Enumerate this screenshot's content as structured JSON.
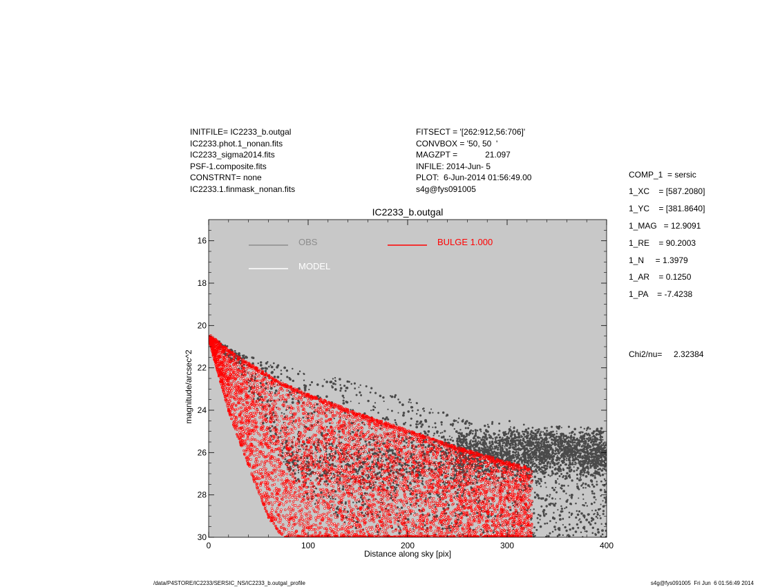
{
  "header_left": [
    "INITFILE= IC2233_b.outgal",
    "IC2233.phot.1_nonan.fits",
    "IC2233_sigma2014.fits",
    "PSF-1.composite.fits",
    "CONSTRNT= none",
    "IC2233.1.finmask_nonan.fits"
  ],
  "header_mid": [
    "FITSECT = '[262:912,56:706]'",
    "CONVBOX = '50, 50  '",
    "MAGZPT =            21.097",
    "INFILE: 2014-Jun- 5",
    "PLOT:  6-Jun-2014 01:56:49.00",
    "s4g@fys091005"
  ],
  "params": [
    "COMP_1  = sersic",
    "1_XC    = [587.2080]",
    "1_YC    = [381.8640]",
    "1_MAG   = 12.9091",
    "1_RE    = 90.2003",
    "1_N     = 1.3979",
    "1_AR    = 0.1250",
    "1_PA    = -7.4238"
  ],
  "chi2": "Chi2/nu=     2.32384",
  "footer_left": "/data/P4STORE/IC2233/SERSIC_NS/IC2233_b.outgal_profile",
  "footer_right": "s4g@fys091005  Fri Jun  6 01:56:49 2014",
  "colors": {
    "plot_bg": "#c8c8c8",
    "obs": "#4a4a4a",
    "obs_legend": "#8c8c8c",
    "model": "#ffffff",
    "bulge": "#ff0000"
  },
  "chart_data": {
    "type": "scatter",
    "title": "IC2233_b.outgal",
    "xlabel": "Distance along sky [pix]",
    "ylabel": "magnitude/arcsec^2",
    "xlim": [
      0,
      400
    ],
    "ylim": [
      30,
      15
    ],
    "y_reversed": true,
    "x_ticks": [
      0,
      100,
      200,
      300,
      400
    ],
    "y_ticks": [
      16,
      18,
      20,
      22,
      24,
      26,
      28,
      30
    ],
    "x_tick_labels": [
      "0",
      "100",
      "200",
      "300",
      "400"
    ],
    "y_tick_labels": [
      "16",
      "18",
      "20",
      "22",
      "24",
      "26",
      "28",
      "30"
    ],
    "legend_position": "top",
    "series": [
      {
        "name": "OBS",
        "kind": "points",
        "color": "#4a4a4a",
        "envelope": {
          "x": [
            2,
            30,
            60,
            100,
            140,
            180,
            220,
            260,
            300,
            340,
            380,
            400
          ],
          "y_min": [
            20.7,
            22.0,
            25.2,
            28.2,
            29.5,
            30.0,
            30.0,
            30.0,
            30.0,
            30.0,
            30.0,
            30.0
          ],
          "y_max": [
            20.5,
            21.3,
            21.7,
            22.2,
            22.6,
            23.1,
            23.8,
            24.5,
            24.8,
            25.0,
            25.1,
            25.4
          ]
        },
        "dense_band": {
          "x": [
            100,
            200,
            300,
            350,
            400
          ],
          "y_center": [
            26.7,
            26.5,
            26.0,
            26.0,
            26.2
          ]
        }
      },
      {
        "name": "MODEL",
        "kind": "points",
        "color": "#ffffff"
      },
      {
        "name": "BULGE  1.000",
        "kind": "points",
        "color": "#ff0000",
        "envelope": {
          "x": [
            1,
            20,
            40,
            60,
            75,
            100,
            150,
            200,
            250,
            300,
            325
          ],
          "y_min": [
            20.8,
            24.0,
            26.6,
            29.0,
            30.0,
            30.0,
            30.0,
            30.0,
            30.0,
            30.0,
            30.0
          ],
          "y_max": [
            20.5,
            21.2,
            21.8,
            22.4,
            22.8,
            23.3,
            24.2,
            25.0,
            25.8,
            26.5,
            26.8
          ]
        }
      }
    ]
  }
}
